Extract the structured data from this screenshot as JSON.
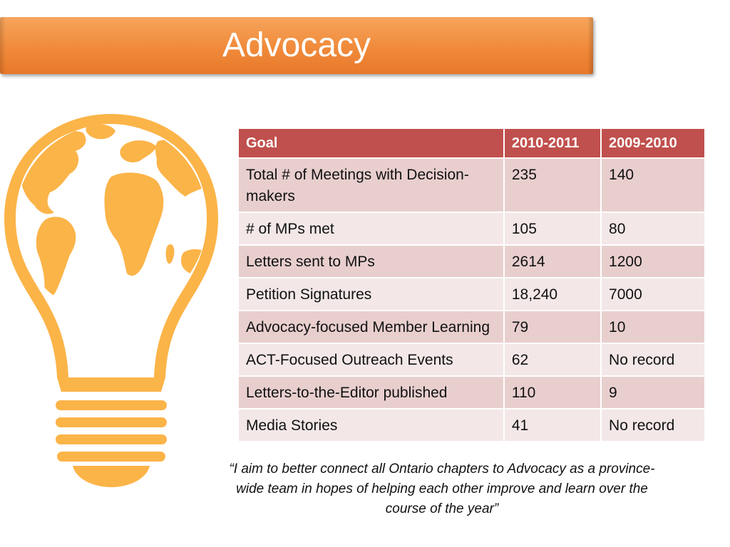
{
  "slide": {
    "title": "Advocacy",
    "accent_color": "#f08a3a",
    "header_color": "#c0504d",
    "icon": "lightbulb-globe-icon"
  },
  "table": {
    "headers": [
      "Goal",
      "2010-2011",
      "2009-2010"
    ],
    "rows": [
      [
        "Total # of Meetings with Decision-makers",
        "235",
        "140"
      ],
      [
        "# of MPs met",
        "105",
        "80"
      ],
      [
        "Letters sent to MPs",
        "2614",
        "1200"
      ],
      [
        "Petition Signatures",
        "18,240",
        "7000"
      ],
      [
        "Advocacy-focused Member Learning",
        "79",
        "10"
      ],
      [
        "ACT-Focused Outreach Events",
        "62",
        "No record"
      ],
      [
        "Letters-to-the-Editor published",
        "110",
        "9"
      ],
      [
        "Media Stories",
        "41",
        "No record"
      ]
    ]
  },
  "quote": "“I aim to better connect all Ontario chapters to Advocacy as a province-wide team in hopes of helping each other improve and learn over the course of the year”"
}
